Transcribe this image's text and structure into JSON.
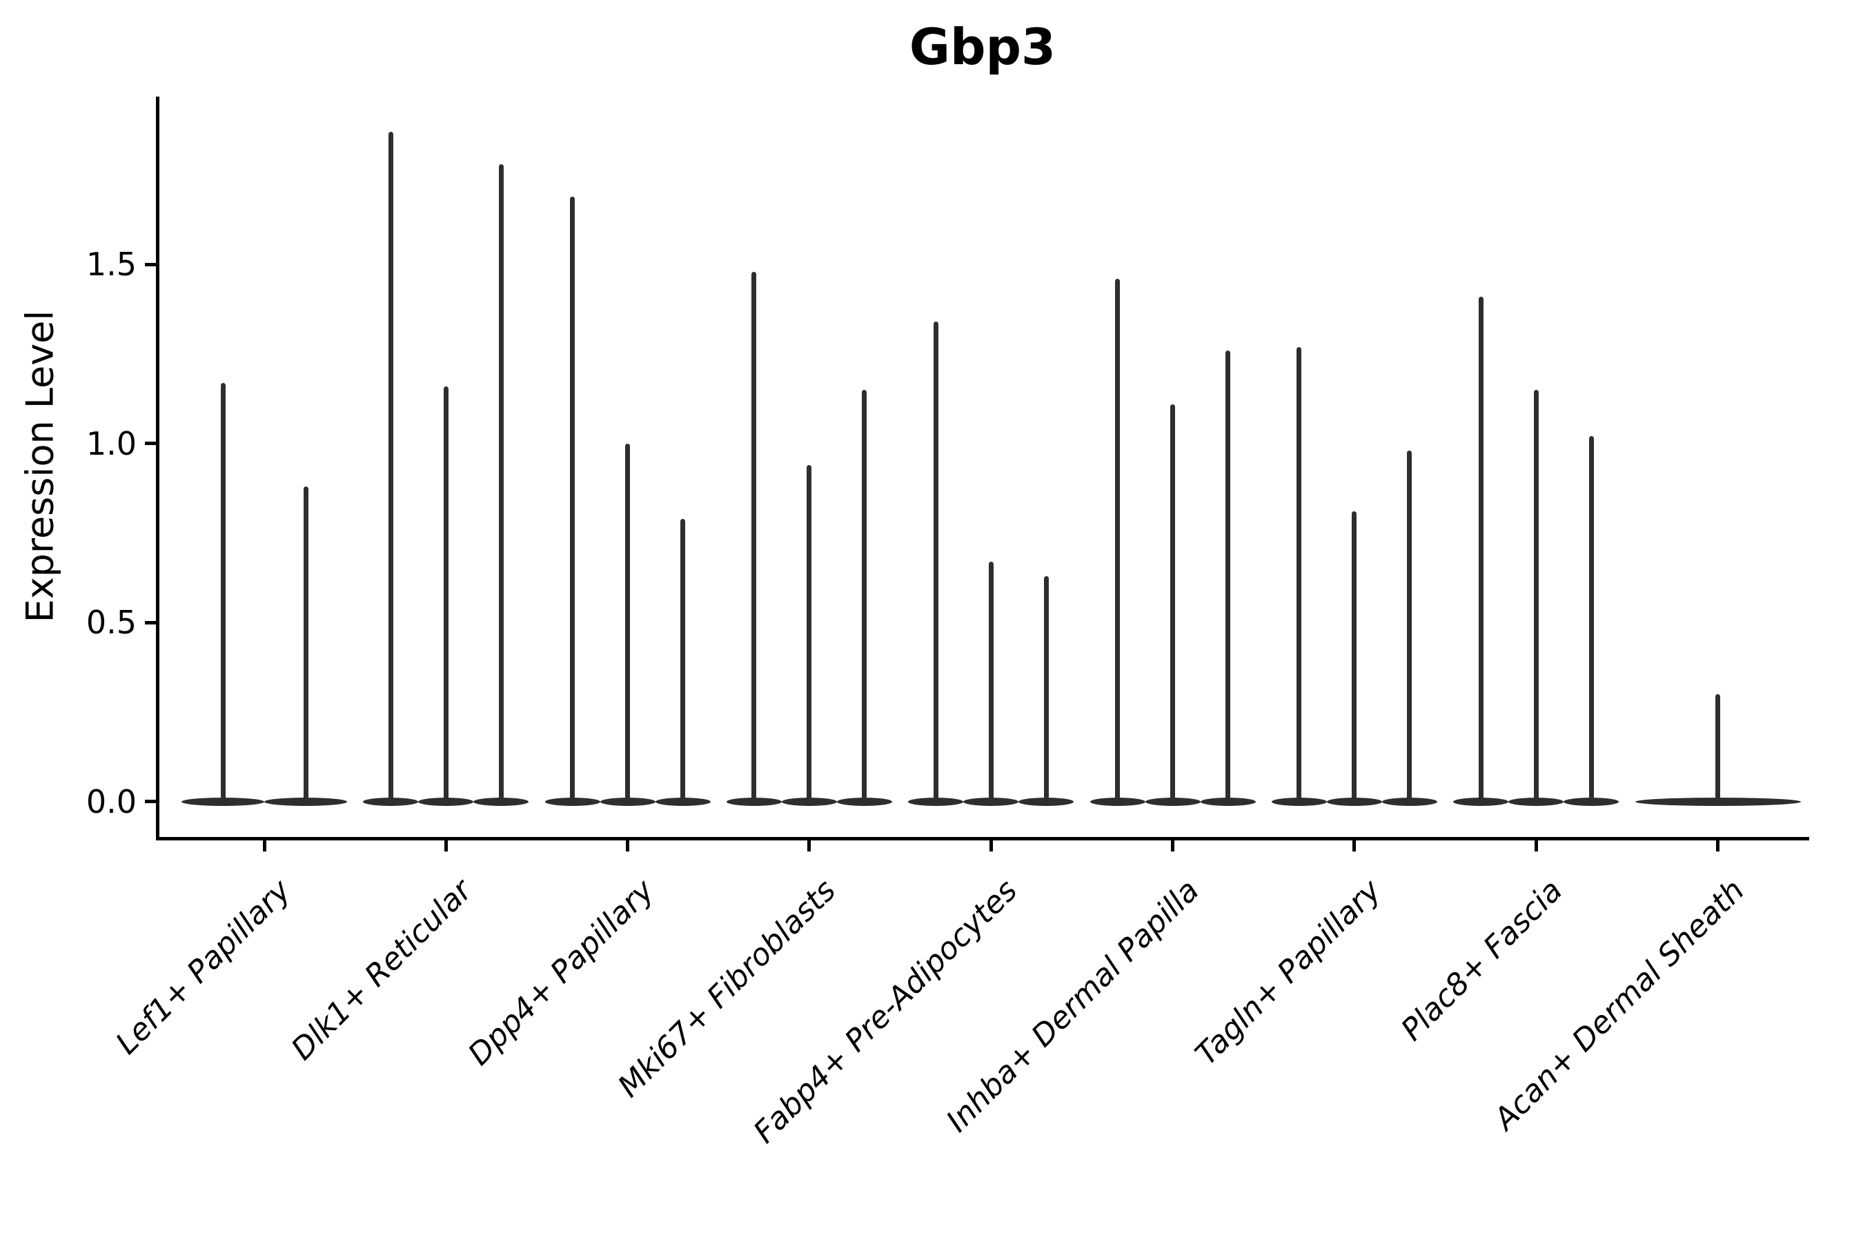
{
  "title": "Gbp3",
  "y_axis": {
    "label": "Expression Level",
    "tick_labels": [
      "0.0",
      "0.5",
      "1.0",
      "1.5"
    ]
  },
  "chart_data": {
    "type": "violin",
    "title": "Gbp3",
    "xlabel": "",
    "ylabel": "Expression Level",
    "ylim": [
      0,
      1.97
    ],
    "yticks": [
      0.0,
      0.5,
      1.0,
      1.5
    ],
    "ytick_labels": [
      "0.0",
      "0.5",
      "1.0",
      "1.5"
    ],
    "grid": false,
    "legend": "none",
    "description": "Zero-inflated expression violins: each category shows a wide flat violin body at 0 with thin spikes rising to the maximum expression of each sub-violin.",
    "categories": [
      "Lef1+ Papillary",
      "Dlk1+ Reticular",
      "Dpp4+ Papillary",
      "Mki67+ Fibroblasts",
      "Fabp4+ Pre-Adipocytes",
      "Inhba+ Dermal Papilla",
      "Tagln+ Papillary",
      "Plac8+ Fascia",
      "Acan+ Dermal Sheath"
    ],
    "groups": [
      {
        "category": "Lef1+ Papillary",
        "violin_maxima": [
          1.17,
          0.88
        ]
      },
      {
        "category": "Dlk1+ Reticular",
        "violin_maxima": [
          1.87,
          1.16,
          1.78
        ]
      },
      {
        "category": "Dpp4+ Papillary",
        "violin_maxima": [
          1.69,
          1.0,
          0.79
        ]
      },
      {
        "category": "Mki67+ Fibroblasts",
        "violin_maxima": [
          1.48,
          0.94,
          1.15
        ]
      },
      {
        "category": "Fabp4+ Pre-Adipocytes",
        "violin_maxima": [
          1.34,
          0.67,
          0.63
        ]
      },
      {
        "category": "Inhba+ Dermal Papilla",
        "violin_maxima": [
          1.46,
          1.11,
          1.26
        ]
      },
      {
        "category": "Tagln+ Papillary",
        "violin_maxima": [
          1.27,
          0.81,
          0.98
        ]
      },
      {
        "category": "Plac8+ Fascia",
        "violin_maxima": [
          1.41,
          1.15,
          1.02
        ]
      },
      {
        "category": "Acan+ Dermal Sheath",
        "violin_maxima": [
          0.3
        ]
      }
    ],
    "baseline_value": 0.0,
    "colors": {
      "violin": "#2e2e2e",
      "axis": "#000000",
      "background": "#ffffff"
    }
  }
}
